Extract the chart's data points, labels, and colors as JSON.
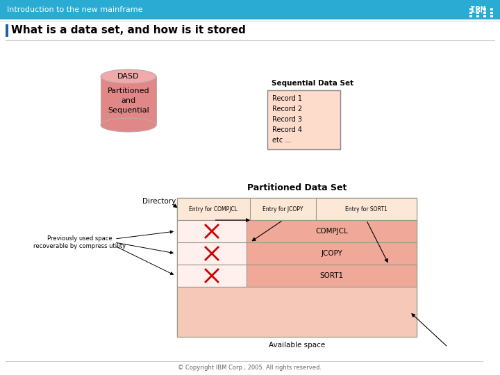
{
  "title_bar_text": "Introduction to the new mainframe",
  "title_bar_color": "#29ABD4",
  "slide_title": "What is a data set, and how is it stored",
  "slide_title_bar_color": "#1F5FA6",
  "background_color": "#FFFFFF",
  "footer_text": "© Copyright IBM Corp., 2005. All rights reserved.",
  "seq_label": "Sequential Data Set",
  "seq_records": [
    "Record 1",
    "Record 2",
    "Record 3",
    "Record 4",
    "etc ..."
  ],
  "seq_box_fill": "#FDDCCC",
  "dasd_color_top": "#F0AAAA",
  "dasd_color_body": "#E08888",
  "dasd_text_color": "#000000",
  "pds_label": "Partitioned Data Set",
  "dir_label": "Directory",
  "dir_entries": [
    "Entry for COMPJCL",
    "Entry for JCOPY",
    "Entry for SORT1"
  ],
  "pds_members": [
    "COMPJCL",
    "JCOPY",
    "SORT1"
  ],
  "pds_outer_color": "#F5C8B8",
  "pds_dir_color": "#FDE8D8",
  "pds_member_color": "#F0A898",
  "pds_deleted_fill": "#FFF0EE",
  "previously_label": "Previously used space\nrecoverable by compress utility",
  "avail_label": "Available space"
}
